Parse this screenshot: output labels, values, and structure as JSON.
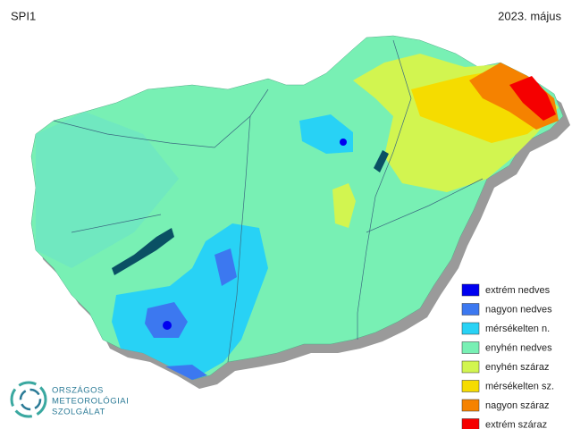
{
  "header": {
    "title": "SPI1",
    "date": "2023. május"
  },
  "legend": {
    "items": [
      {
        "label": "extrém nedves",
        "color": "#0000f0"
      },
      {
        "label": "nagyon nedves",
        "color": "#3c78f0"
      },
      {
        "label": "mérsékelten n.",
        "color": "#28d2f5"
      },
      {
        "label": "enyhén nedves",
        "color": "#78f0b4"
      },
      {
        "label": "enyhén száraz",
        "color": "#d2f550"
      },
      {
        "label": "mérsékelten sz.",
        "color": "#f5dc00"
      },
      {
        "label": "nagyon száraz",
        "color": "#f58200"
      },
      {
        "label": "extrém száraz",
        "color": "#f50000"
      }
    ]
  },
  "logo": {
    "lines": [
      "ORSZÁGOS",
      "METEOROLÓGIAI",
      "SZOLGÁLAT"
    ]
  }
}
